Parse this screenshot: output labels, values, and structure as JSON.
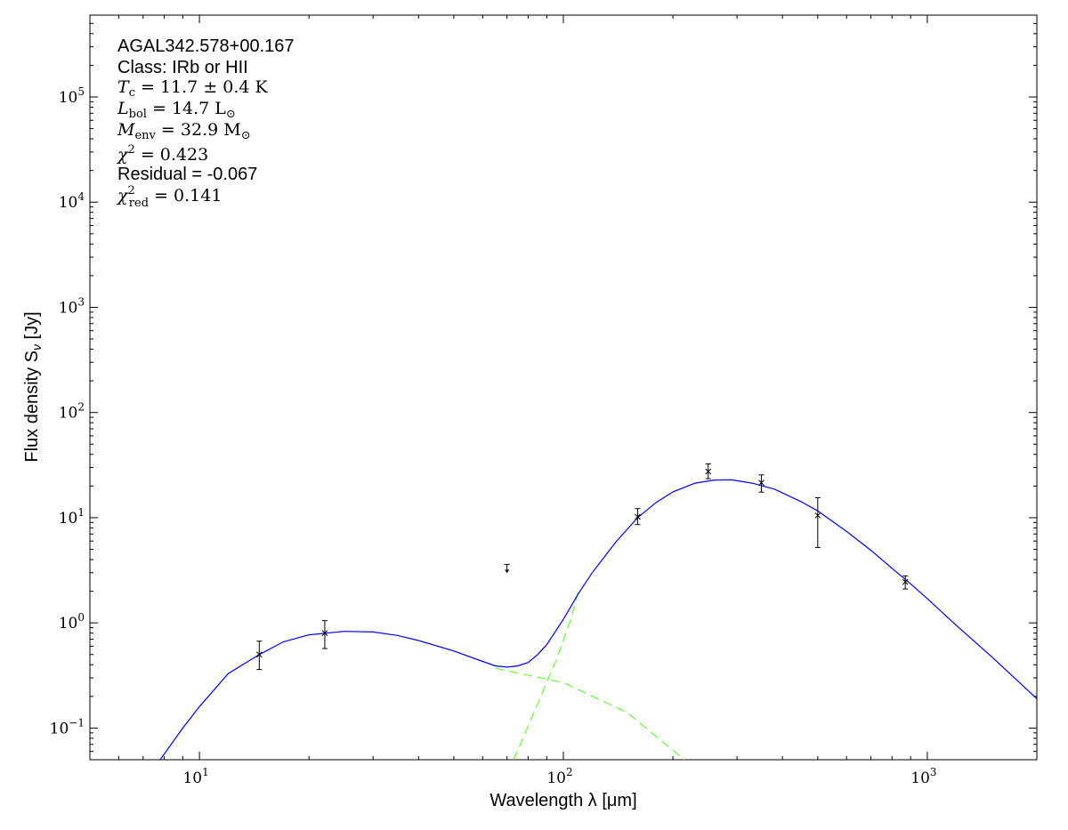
{
  "chart_data": {
    "type": "scatter",
    "xlabel": "Wavelength λ [μm]",
    "ylabel": "Flux density S",
    "ylabel_sub": "ν",
    "ylabel_unit": " [Jy]",
    "xscale": "log",
    "yscale": "log",
    "xlim": [
      5,
      2000
    ],
    "ylim": [
      0.05,
      600000
    ],
    "x_ticks": [
      {
        "value": 10,
        "base": "10",
        "exp": "1"
      },
      {
        "value": 100,
        "base": "10",
        "exp": "2"
      },
      {
        "value": 1000,
        "base": "10",
        "exp": "3"
      }
    ],
    "y_ticks": [
      {
        "value": 0.1,
        "base": "10",
        "exp": "−1"
      },
      {
        "value": 1,
        "base": "10",
        "exp": "0"
      },
      {
        "value": 10,
        "base": "10",
        "exp": "1"
      },
      {
        "value": 100,
        "base": "10",
        "exp": "2"
      },
      {
        "value": 1000,
        "base": "10",
        "exp": "3"
      },
      {
        "value": 10000,
        "base": "10",
        "exp": "4"
      },
      {
        "value": 100000,
        "base": "10",
        "exp": "5"
      }
    ],
    "points": [
      {
        "x": 14.6,
        "y": 0.5,
        "ylo": 0.36,
        "yhi": 0.67
      },
      {
        "x": 22.1,
        "y": 0.8,
        "ylo": 0.57,
        "yhi": 1.05
      },
      {
        "x": 160,
        "y": 10.2,
        "ylo": 8.6,
        "yhi": 12.2
      },
      {
        "x": 250,
        "y": 27.5,
        "ylo": 23.5,
        "yhi": 32.5
      },
      {
        "x": 350,
        "y": 21.5,
        "ylo": 17.5,
        "yhi": 25.5
      },
      {
        "x": 500,
        "y": 10.5,
        "ylo": 5.2,
        "yhi": 15.5
      },
      {
        "x": 870,
        "y": 2.45,
        "ylo": 2.1,
        "yhi": 2.8
      }
    ],
    "upper_limits": [
      {
        "x": 70,
        "y": 3.6
      }
    ],
    "model_curve": [
      [
        7.8,
        0.05
      ],
      [
        9,
        0.1
      ],
      [
        10,
        0.16
      ],
      [
        12,
        0.33
      ],
      [
        14.6,
        0.5
      ],
      [
        17,
        0.66
      ],
      [
        20,
        0.77
      ],
      [
        25,
        0.83
      ],
      [
        30,
        0.82
      ],
      [
        35,
        0.76
      ],
      [
        40,
        0.68
      ],
      [
        50,
        0.54
      ],
      [
        60,
        0.43
      ],
      [
        65,
        0.39
      ],
      [
        70,
        0.38
      ],
      [
        75,
        0.39
      ],
      [
        80,
        0.42
      ],
      [
        85,
        0.5
      ],
      [
        90,
        0.62
      ],
      [
        100,
        1.08
      ],
      [
        110,
        1.9
      ],
      [
        120,
        3.0
      ],
      [
        140,
        6.0
      ],
      [
        160,
        10.0
      ],
      [
        180,
        14.0
      ],
      [
        200,
        17.6
      ],
      [
        230,
        21.3
      ],
      [
        260,
        22.8
      ],
      [
        290,
        22.9
      ],
      [
        330,
        21.3
      ],
      [
        380,
        18.7
      ],
      [
        450,
        14.2
      ],
      [
        500,
        11.6
      ],
      [
        600,
        7.4
      ],
      [
        700,
        4.9
      ],
      [
        800,
        3.3
      ],
      [
        900,
        2.35
      ],
      [
        1000,
        1.7
      ],
      [
        1200,
        0.95
      ],
      [
        1500,
        0.48
      ],
      [
        2000,
        0.19
      ]
    ],
    "component_curves": [
      {
        "points": [
          [
            65,
            0.37
          ],
          [
            100,
            0.27
          ],
          [
            150,
            0.14
          ],
          [
            215,
            0.05
          ]
        ]
      },
      {
        "points": [
          [
            73,
            0.05
          ],
          [
            85,
            0.17
          ],
          [
            95,
            0.42
          ],
          [
            105,
            1.1
          ],
          [
            110,
            2.0
          ]
        ]
      }
    ],
    "colors": {
      "model": "#0000ff",
      "components": "#66ff33",
      "points": "#000000"
    },
    "grid": false,
    "annotation": {
      "source": "AGAL342.578+00.167",
      "class_label": "Class: IRb or HII",
      "tc_value": "11.7 ± 0.4 K",
      "lbol_value": "14.7 L",
      "menv_value": "32.9 M",
      "chi2_value": "0.423",
      "residual": "Residual = -0.067",
      "chi2_red_value": "0.141"
    }
  }
}
